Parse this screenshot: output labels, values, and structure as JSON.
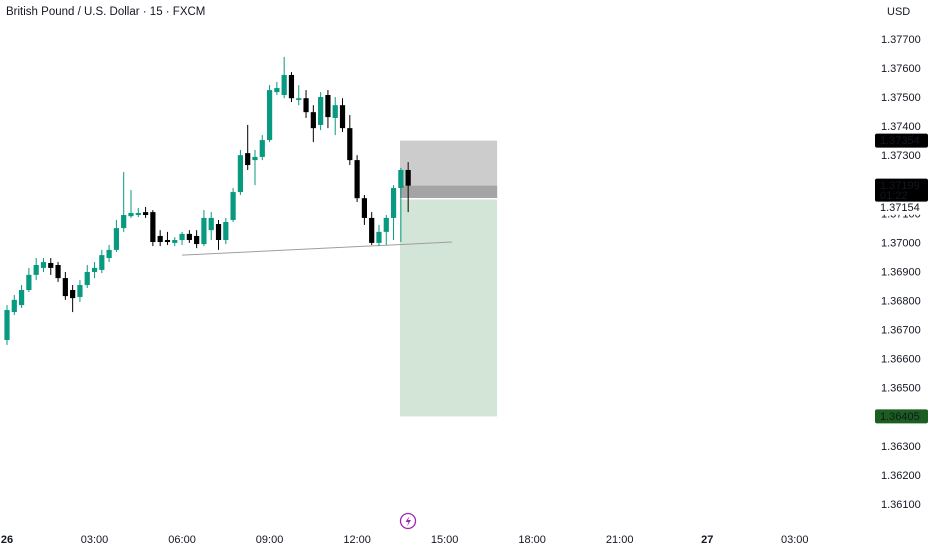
{
  "chart_data": {
    "type": "candlestick",
    "title": "British Pound / U.S. Dollar · 15 · FXCM",
    "currency": "USD",
    "up_color": "#089981",
    "down_color": "#000000",
    "x": [
      0,
      0.25,
      0.5,
      0.75,
      1,
      1.25,
      1.5,
      1.75,
      2,
      2.25,
      2.5,
      2.75,
      3,
      3.25,
      3.5,
      3.75,
      4,
      4.25,
      4.5,
      4.75,
      5,
      5.25,
      5.5,
      5.75,
      6,
      6.25,
      6.5,
      6.75,
      7,
      7.25,
      7.5,
      7.75,
      8,
      8.25,
      8.5,
      8.75,
      9,
      9.25,
      9.5,
      9.75,
      10,
      10.25,
      10.5,
      10.75,
      11,
      11.25,
      11.5,
      11.75,
      12,
      12.25,
      12.5,
      12.75,
      13,
      13.25,
      13.5,
      13.75
    ],
    "open": [
      1.36668,
      1.36764,
      1.36788,
      1.3684,
      1.36892,
      1.36916,
      1.36933,
      1.36926,
      1.36881,
      1.3684,
      1.36816,
      1.36857,
      1.36902,
      1.36909,
      1.3695,
      1.36978,
      1.37053,
      1.37094,
      1.37098,
      1.37108,
      1.37108,
      1.37026,
      1.37012,
      1.37002,
      1.37012,
      1.37033,
      1.37026,
      1.36998,
      1.37046,
      1.37067,
      1.37012,
      1.37081,
      1.37177,
      1.37311,
      1.37287,
      1.37298,
      1.37356,
      1.37521,
      1.37511,
      1.3758,
      1.37494,
      1.375,
      1.37452,
      1.37408,
      1.37511,
      1.37432,
      1.37476,
      1.37397,
      1.37287,
      1.37156,
      1.37088,
      1.37002,
      1.3704,
      1.37088,
      1.37191,
      1.37253
    ],
    "high": [
      1.36788,
      1.36823,
      1.36857,
      1.36916,
      1.3695,
      1.3695,
      1.3695,
      1.36936,
      1.36902,
      1.36857,
      1.36874,
      1.36926,
      1.36936,
      1.36978,
      1.36995,
      1.37081,
      1.37246,
      1.37184,
      1.37122,
      1.37126,
      1.37115,
      1.37046,
      1.3704,
      1.37022,
      1.3704,
      1.37046,
      1.37046,
      1.37115,
      1.37108,
      1.37081,
      1.37088,
      1.37191,
      1.37322,
      1.37408,
      1.37322,
      1.37373,
      1.37545,
      1.37556,
      1.37642,
      1.3759,
      1.37545,
      1.37528,
      1.37476,
      1.37521,
      1.37528,
      1.37504,
      1.375,
      1.37442,
      1.37304,
      1.37167,
      1.37108,
      1.37064,
      1.37098,
      1.37201,
      1.3726,
      1.3728
    ],
    "low": [
      1.36651,
      1.36754,
      1.36778,
      1.36833,
      1.36874,
      1.36902,
      1.36892,
      1.36868,
      1.36806,
      1.36764,
      1.36799,
      1.36847,
      1.36881,
      1.36898,
      1.36936,
      1.36971,
      1.3704,
      1.37088,
      1.37091,
      1.37088,
      1.36991,
      1.36991,
      1.36995,
      1.36991,
      1.36995,
      1.37002,
      1.36984,
      1.36991,
      1.37012,
      1.36978,
      1.36998,
      1.37074,
      1.37167,
      1.37253,
      1.37201,
      1.37287,
      1.37349,
      1.37511,
      1.375,
      1.37487,
      1.37476,
      1.37432,
      1.37349,
      1.3739,
      1.37397,
      1.37373,
      1.37384,
      1.3727,
      1.37143,
      1.37064,
      1.36995,
      1.36991,
      1.36995,
      1.37012,
      1.37005,
      1.37108
    ],
    "close": [
      1.36771,
      1.36806,
      1.3684,
      1.36892,
      1.36926,
      1.36936,
      1.36916,
      1.36881,
      1.36819,
      1.36812,
      1.36857,
      1.36902,
      1.36916,
      1.3696,
      1.36978,
      1.37053,
      1.37098,
      1.37105,
      1.37105,
      1.37098,
      1.37005,
      1.37005,
      1.37005,
      1.37012,
      1.37033,
      1.37012,
      1.36998,
      1.37088,
      1.37088,
      1.37012,
      1.37074,
      1.37177,
      1.37304,
      1.3727,
      1.37298,
      1.37356,
      1.37528,
      1.37535,
      1.3758,
      1.375,
      1.375,
      1.37452,
      1.37397,
      1.37504,
      1.37435,
      1.37476,
      1.37397,
      1.37287,
      1.37156,
      1.37088,
      1.37002,
      1.3704,
      1.37088,
      1.37191,
      1.37253,
      1.37199
    ],
    "xlim": [
      -0.24,
      29.58
    ],
    "xticks": [
      {
        "value": 0,
        "label": "26"
      },
      {
        "value": 3,
        "label": "03:00"
      },
      {
        "value": 6,
        "label": "06:00"
      },
      {
        "value": 9,
        "label": "09:00"
      },
      {
        "value": 12,
        "label": "12:00"
      },
      {
        "value": 15,
        "label": "15:00"
      },
      {
        "value": 18,
        "label": "18:00"
      },
      {
        "value": 21,
        "label": "21:00"
      },
      {
        "value": 24,
        "label": "27"
      },
      {
        "value": 27,
        "label": "03:00"
      }
    ],
    "ylim": [
      1.36014,
      1.37838
    ],
    "yticks": [
      {
        "value": 1.361,
        "label": "1.36100"
      },
      {
        "value": 1.362,
        "label": "1.36200"
      },
      {
        "value": 1.363,
        "label": "1.36300"
      },
      {
        "value": 1.364,
        "label": "1.36400"
      },
      {
        "value": 1.365,
        "label": "1.36500"
      },
      {
        "value": 1.366,
        "label": "1.36600"
      },
      {
        "value": 1.367,
        "label": "1.36700"
      },
      {
        "value": 1.368,
        "label": "1.36800"
      },
      {
        "value": 1.369,
        "label": "1.36900"
      },
      {
        "value": 1.37,
        "label": "1.37000"
      },
      {
        "value": 1.371,
        "label": "1.37100"
      },
      {
        "value": 1.372,
        "label": "1.37200"
      },
      {
        "value": 1.373,
        "label": "1.37300"
      },
      {
        "value": 1.374,
        "label": "1.37400"
      },
      {
        "value": 1.375,
        "label": "1.37500"
      },
      {
        "value": 1.376,
        "label": "1.37600"
      },
      {
        "value": 1.377,
        "label": "1.37700"
      }
    ],
    "trendline": {
      "x": [
        6,
        15.25
      ],
      "y": [
        1.3696,
        1.37005
      ]
    },
    "position": {
      "start": 13.47,
      "end": 16.8,
      "stop": 1.37354,
      "entry": 1.37154,
      "target": 1.36405
    },
    "last_price": 1.37199,
    "countdown": "01:22"
  }
}
